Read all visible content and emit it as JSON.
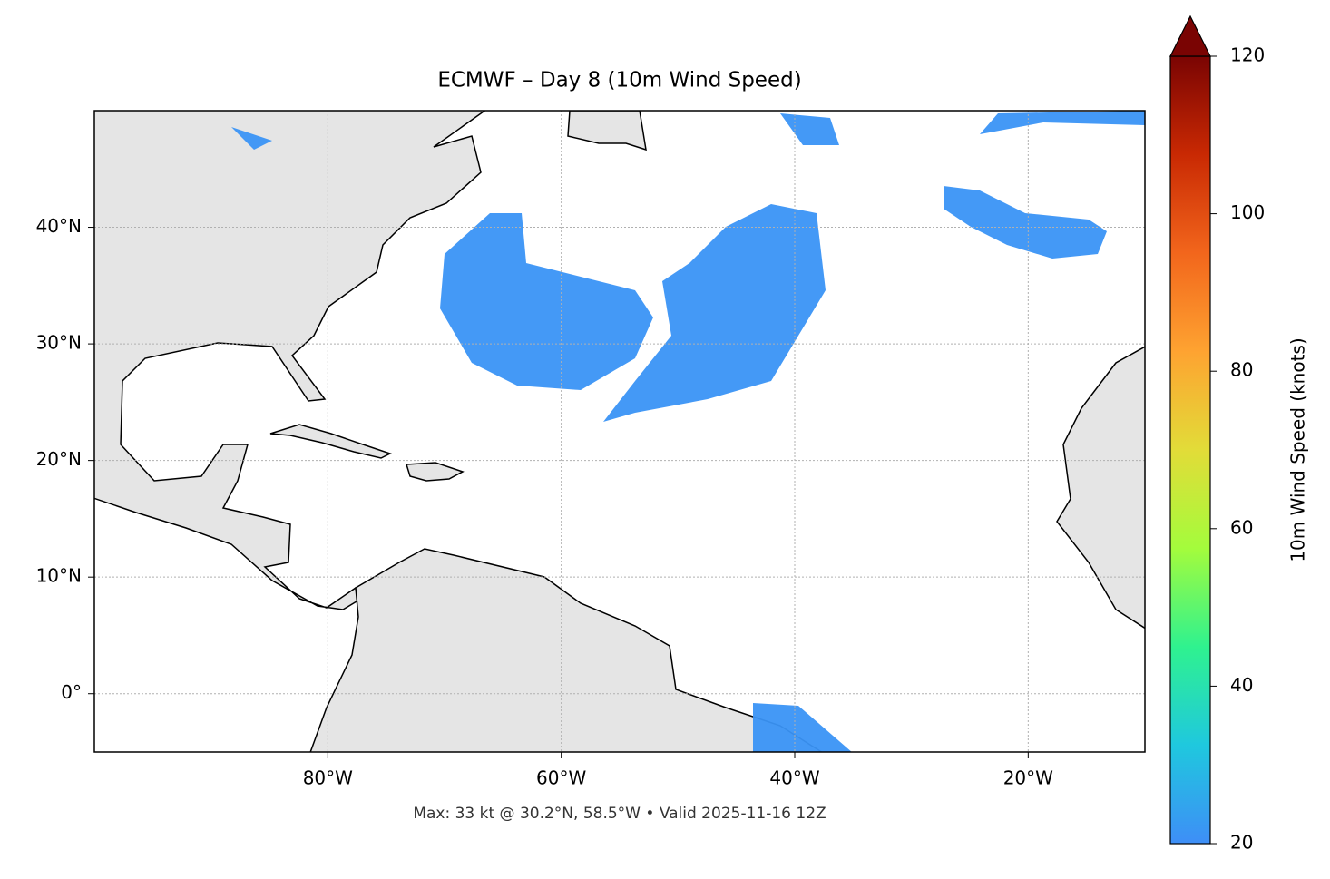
{
  "chart_data": {
    "type": "map",
    "title": "ECMWF – Day 8 (10m Wind Speed)",
    "annotation": "Max: 33 kt @ 30.2°N, 58.5°W • Valid 2025-11-16 12Z",
    "xlim": [
      -100,
      -10
    ],
    "ylim": [
      -5,
      50
    ],
    "xticks": [
      {
        "value": -80,
        "label": "80°W"
      },
      {
        "value": -60,
        "label": "60°W"
      },
      {
        "value": -40,
        "label": "40°W"
      },
      {
        "value": -20,
        "label": "20°W"
      }
    ],
    "yticks": [
      {
        "value": 0,
        "label": "0°"
      },
      {
        "value": 10,
        "label": "10°N"
      },
      {
        "value": 20,
        "label": "20°N"
      },
      {
        "value": 30,
        "label": "30°N"
      },
      {
        "value": 40,
        "label": "40°N"
      }
    ],
    "grid": true,
    "colorbar": {
      "label": "10m Wind Speed (knots)",
      "lim": [
        20,
        120
      ],
      "ticks": [
        20,
        40,
        60,
        80,
        100,
        120
      ],
      "colors": [
        "#3e8ef7",
        "#1fc8de",
        "#2ff28f",
        "#a4fc3c",
        "#e2dc38",
        "#fea331",
        "#f2661c",
        "#c92903",
        "#7a0403"
      ]
    }
  }
}
